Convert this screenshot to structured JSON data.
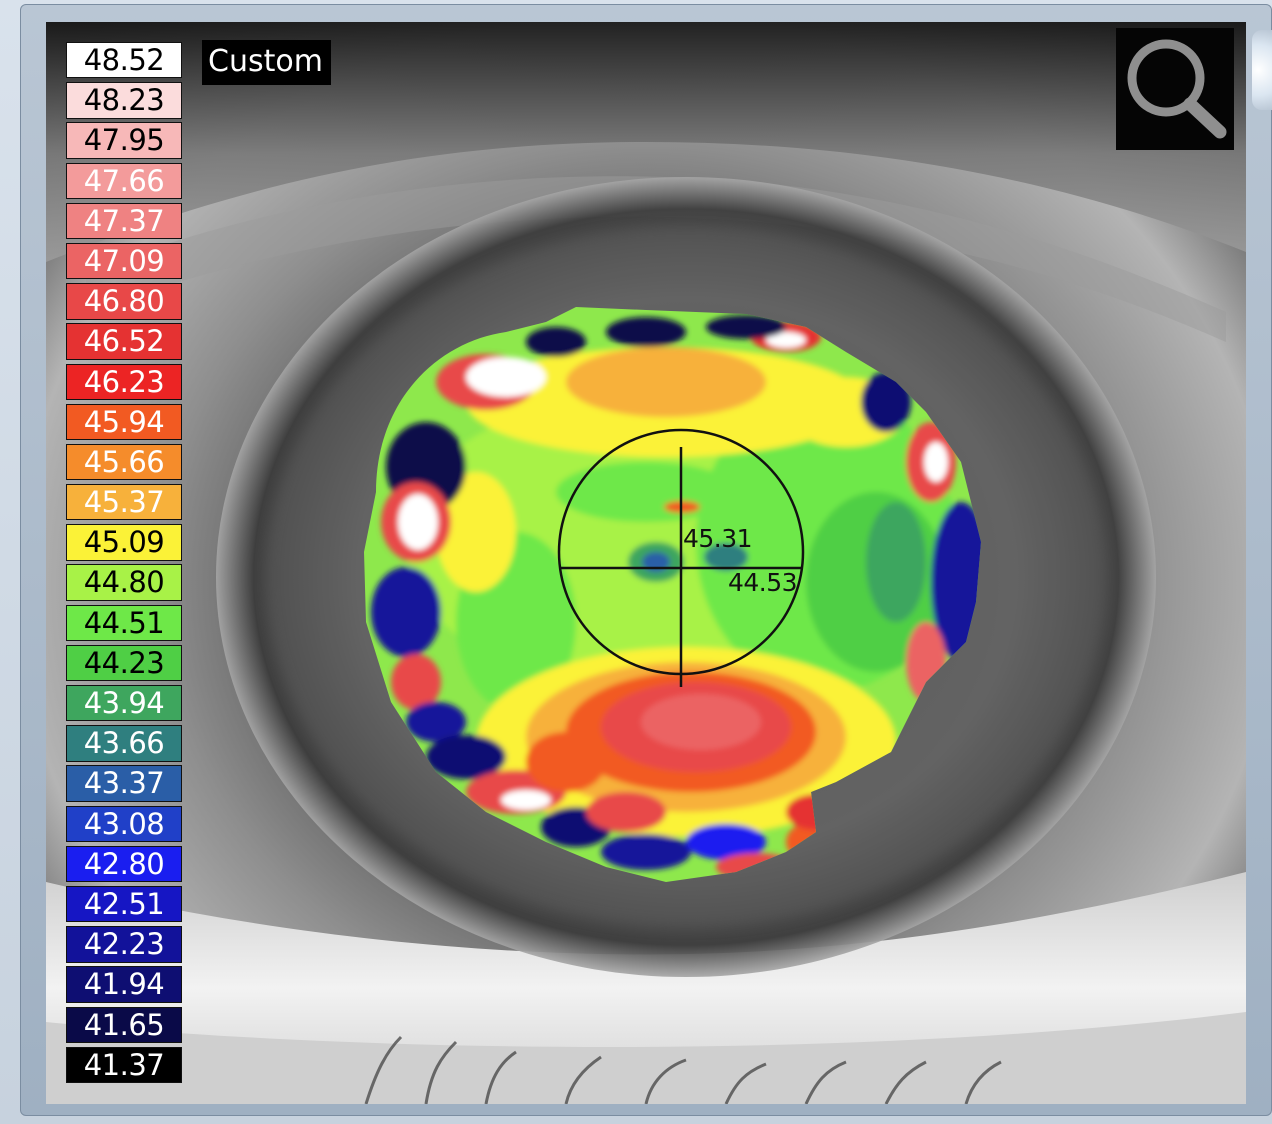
{
  "legend": {
    "items": [
      {
        "value": "48.52",
        "bg": "#ffffff",
        "fg": "#000000"
      },
      {
        "value": "48.23",
        "bg": "#fbdcdc",
        "fg": "#000000"
      },
      {
        "value": "47.95",
        "bg": "#f7b8b8",
        "fg": "#000000"
      },
      {
        "value": "47.66",
        "bg": "#f39b9b",
        "fg": "#ffffff"
      },
      {
        "value": "47.37",
        "bg": "#ef8282",
        "fg": "#ffffff"
      },
      {
        "value": "47.09",
        "bg": "#eb6464",
        "fg": "#ffffff"
      },
      {
        "value": "46.80",
        "bg": "#e84848",
        "fg": "#ffffff"
      },
      {
        "value": "46.52",
        "bg": "#e53232",
        "fg": "#ffffff"
      },
      {
        "value": "46.23",
        "bg": "#ec2424",
        "fg": "#ffffff"
      },
      {
        "value": "45.94",
        "bg": "#f25a22",
        "fg": "#ffffff"
      },
      {
        "value": "45.66",
        "bg": "#f58c2b",
        "fg": "#ffffff"
      },
      {
        "value": "45.37",
        "bg": "#f7b13b",
        "fg": "#ffffff"
      },
      {
        "value": "45.09",
        "bg": "#fbf237",
        "fg": "#000000"
      },
      {
        "value": "44.80",
        "bg": "#a8f247",
        "fg": "#000000"
      },
      {
        "value": "44.51",
        "bg": "#6ee848",
        "fg": "#000000"
      },
      {
        "value": "44.23",
        "bg": "#4fcf45",
        "fg": "#000000"
      },
      {
        "value": "43.94",
        "bg": "#3ea65e",
        "fg": "#ffffff"
      },
      {
        "value": "43.66",
        "bg": "#2f7f7f",
        "fg": "#ffffff"
      },
      {
        "value": "43.37",
        "bg": "#2a5ea7",
        "fg": "#ffffff"
      },
      {
        "value": "43.08",
        "bg": "#2040c8",
        "fg": "#ffffff"
      },
      {
        "value": "42.80",
        "bg": "#1a1ef0",
        "fg": "#ffffff"
      },
      {
        "value": "42.51",
        "bg": "#1616c4",
        "fg": "#ffffff"
      },
      {
        "value": "42.23",
        "bg": "#12129a",
        "fg": "#ffffff"
      },
      {
        "value": "41.94",
        "bg": "#0e0e72",
        "fg": "#ffffff"
      },
      {
        "value": "41.65",
        "bg": "#0a0a48",
        "fg": "#ffffff"
      },
      {
        "value": "41.37",
        "bg": "#000000",
        "fg": "#ffffff"
      }
    ]
  },
  "map": {
    "mode_label": "Custom",
    "readings": {
      "upper": "45.31",
      "lower": "44.53"
    }
  },
  "toolbar": {
    "zoom_icon": "magnifier-icon"
  }
}
